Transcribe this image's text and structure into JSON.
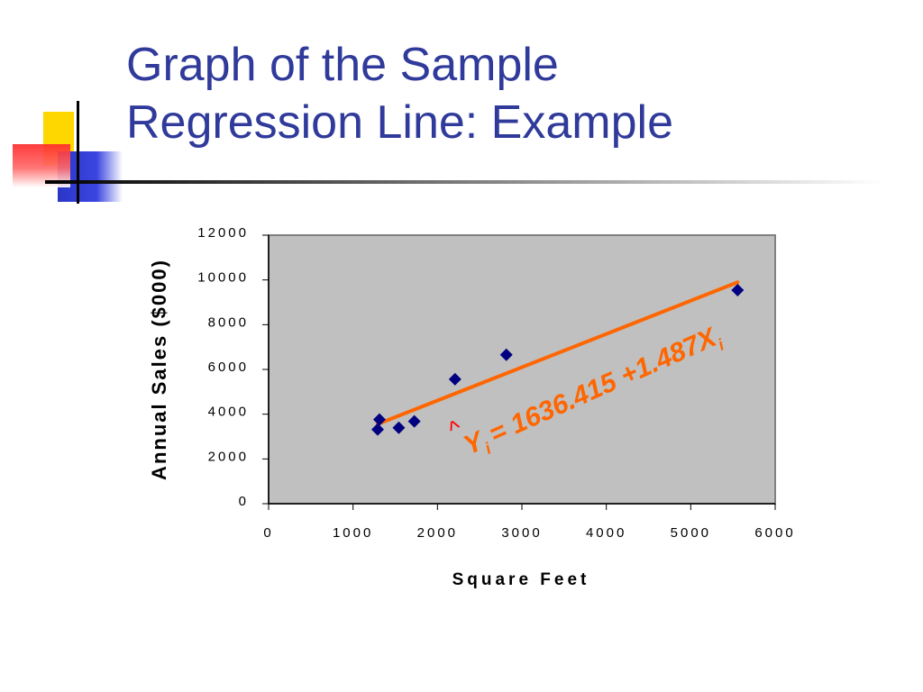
{
  "slide": {
    "title_line1": "Graph of the Sample",
    "title_line2": "Regression Line: Example",
    "title_color": "#2f3a9a"
  },
  "chart_data": {
    "type": "scatter",
    "xlabel": "Square Feet",
    "ylabel": "Annual Sales ($000)",
    "xlim": [
      0,
      6000
    ],
    "ylim": [
      0,
      12000
    ],
    "x_ticks": [
      0,
      1000,
      2000,
      3000,
      4000,
      5000,
      6000
    ],
    "y_ticks": [
      0,
      2000,
      4000,
      6000,
      8000,
      10000,
      12000
    ],
    "grid": false,
    "plot_background": "#c0c0c0",
    "marker_color": "#000080",
    "line_color": "#ff6600",
    "points": [
      {
        "x": 1726,
        "y": 3681
      },
      {
        "x": 1542,
        "y": 3395
      },
      {
        "x": 2816,
        "y": 6653
      },
      {
        "x": 5555,
        "y": 9543
      },
      {
        "x": 1292,
        "y": 3318
      },
      {
        "x": 2208,
        "y": 5563
      },
      {
        "x": 1313,
        "y": 3760
      }
    ],
    "regression": {
      "intercept": 1636.415,
      "slope": 1.487,
      "x_range": [
        1292,
        5555
      ],
      "equation_text": "= 1636.415 +1.487",
      "y_symbol": "Y",
      "x_symbol": "X",
      "subscript": "i",
      "hat": "^",
      "hat_color": "#ff0000"
    }
  }
}
